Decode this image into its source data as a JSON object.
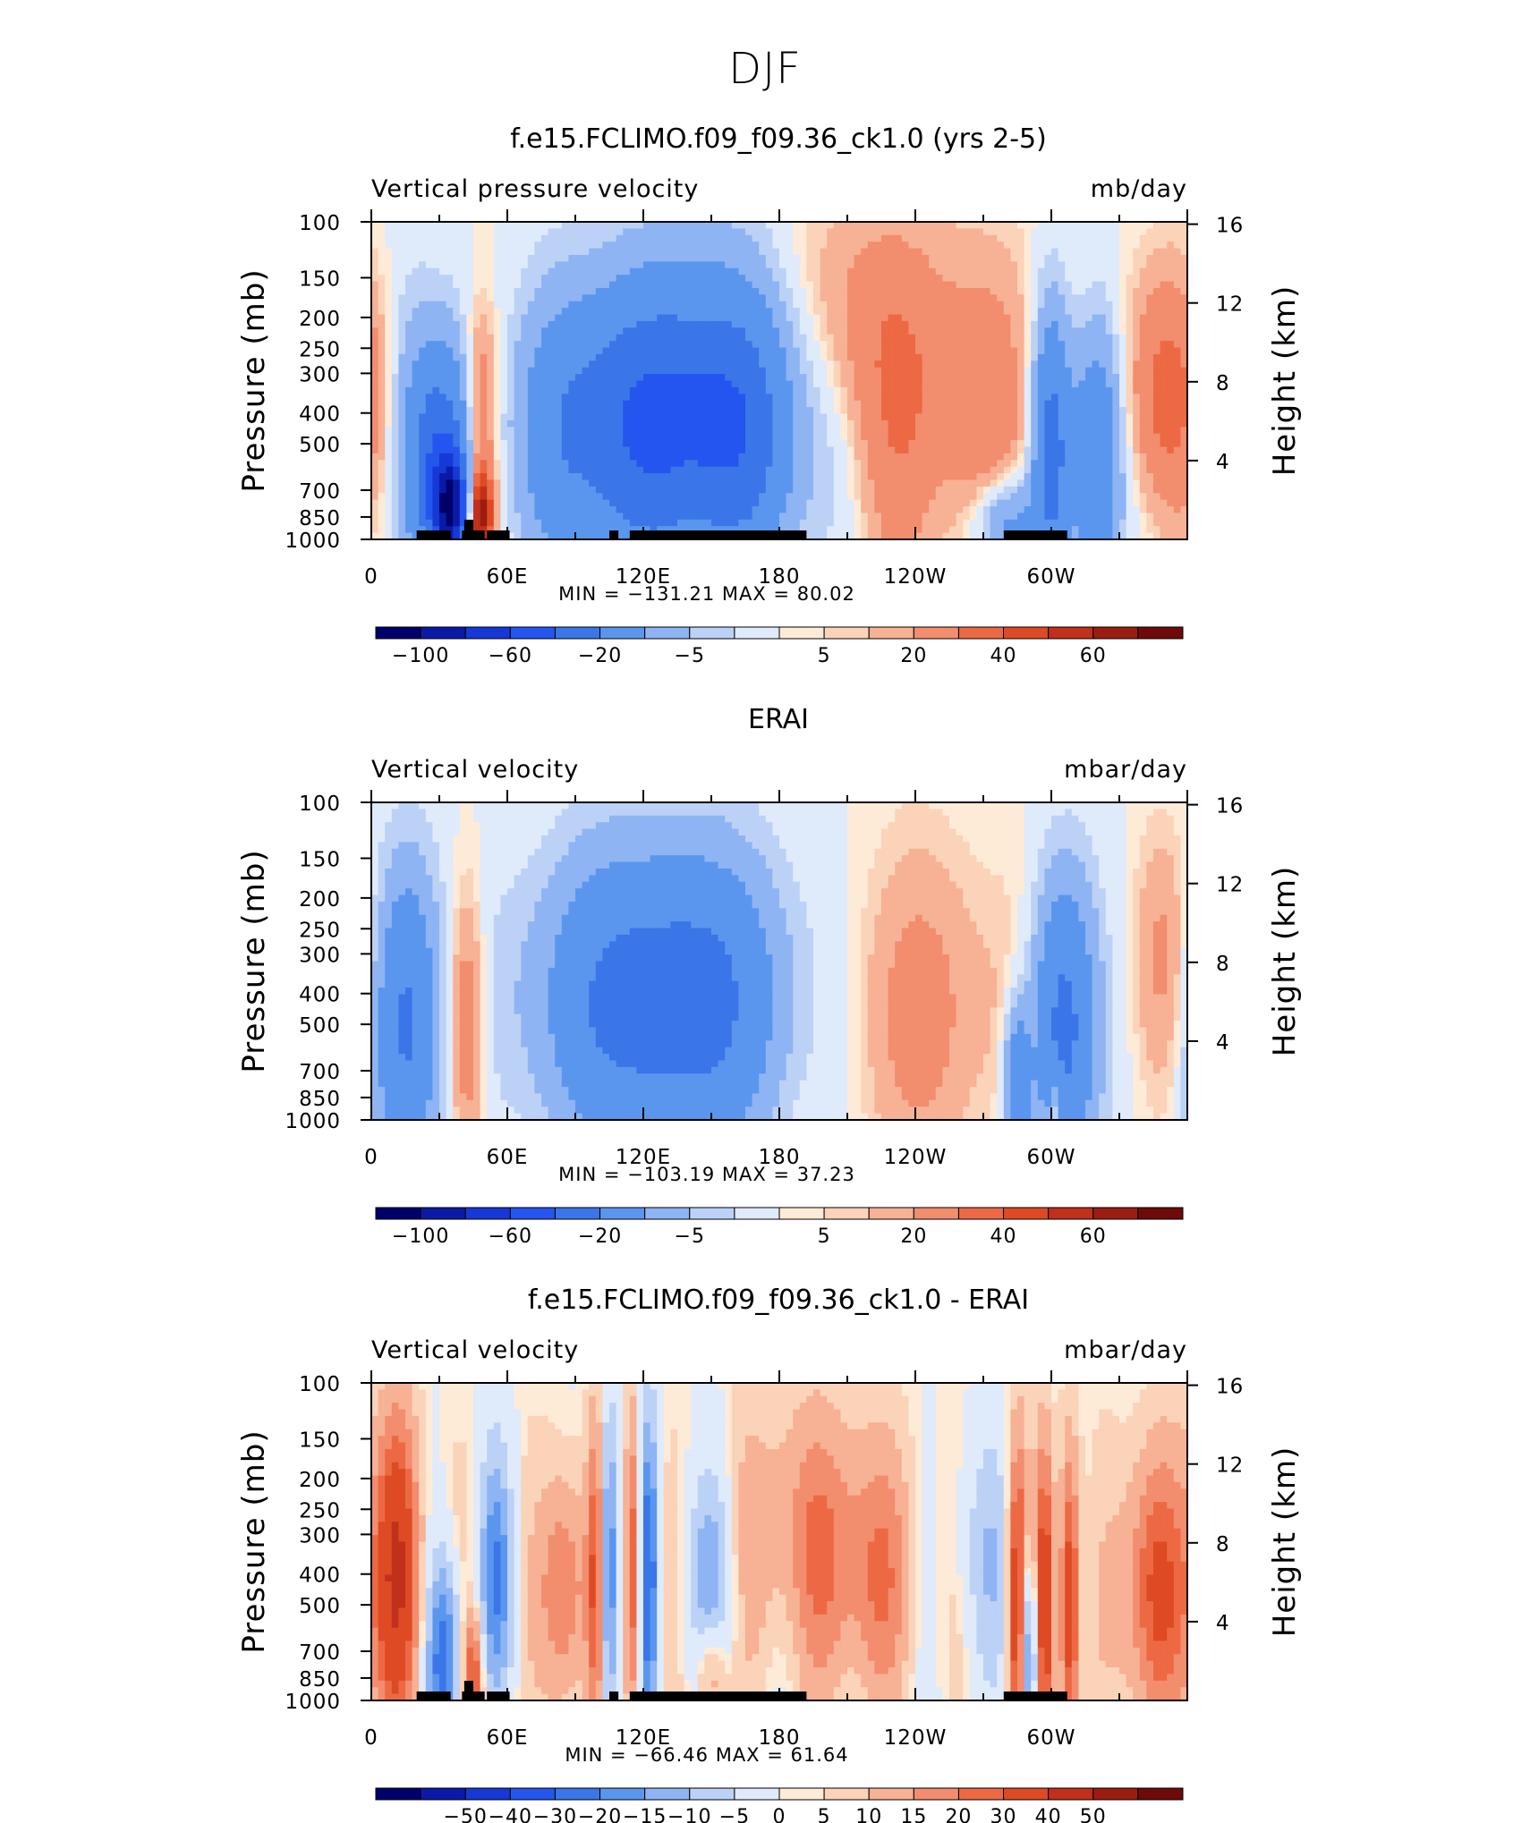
{
  "figure_title": "DJF",
  "chart_data": [
    {
      "type": "heatmap",
      "title": "f.e15.FCLIMO.f09_f09.36_ck1.0 (yrs 2-5)",
      "variable_label": "Vertical pressure velocity",
      "units_label": "mb/day",
      "ylabel": "Pressure (mb)",
      "ylabel_right": "Height (km)",
      "x_ticks": [
        "0",
        "60E",
        "120E",
        "180",
        "120W",
        "60W"
      ],
      "y_ticks": [
        "100",
        "150",
        "200",
        "250",
        "300",
        "400",
        "500",
        "700",
        "850",
        "1000"
      ],
      "y_ticks_right": [
        "16",
        "12",
        "8",
        "4"
      ],
      "stats": {
        "min_label": "MIN",
        "min": "−131.21",
        "max_label": "MAX",
        "max": "80.02"
      },
      "colorbar_levels": [
        "−100",
        "−60",
        "−20",
        "−5",
        "5",
        "20",
        "40",
        "60"
      ],
      "x_range_deg": [
        0,
        360
      ],
      "ylim": [
        1000,
        100
      ],
      "pattern": "model",
      "terrain": [
        [
          20,
          35
        ],
        [
          40,
          50
        ],
        [
          51,
          61
        ],
        [
          41,
          45
        ],
        [
          105,
          109
        ],
        [
          114,
          192
        ],
        [
          279,
          307
        ]
      ]
    },
    {
      "type": "heatmap",
      "title": "ERAI",
      "variable_label": "Vertical velocity",
      "units_label": "mbar/day",
      "ylabel": "Pressure (mb)",
      "ylabel_right": "Height (km)",
      "x_ticks": [
        "0",
        "60E",
        "120E",
        "180",
        "120W",
        "60W"
      ],
      "y_ticks": [
        "100",
        "150",
        "200",
        "250",
        "300",
        "400",
        "500",
        "700",
        "850",
        "1000"
      ],
      "y_ticks_right": [
        "16",
        "12",
        "8",
        "4"
      ],
      "stats": {
        "min_label": "MIN",
        "min": "−103.19",
        "max_label": "MAX",
        "max": "37.23"
      },
      "colorbar_levels": [
        "−100",
        "−60",
        "−20",
        "−5",
        "5",
        "20",
        "40",
        "60"
      ],
      "x_range_deg": [
        0,
        360
      ],
      "ylim": [
        1000,
        100
      ],
      "pattern": "obs",
      "terrain": []
    },
    {
      "type": "heatmap",
      "title": "f.e15.FCLIMO.f09_f09.36_ck1.0 - ERAI",
      "variable_label": "Vertical velocity",
      "units_label": "mbar/day",
      "ylabel": "Pressure (mb)",
      "ylabel_right": "Height (km)",
      "x_ticks": [
        "0",
        "60E",
        "120E",
        "180",
        "120W",
        "60W"
      ],
      "y_ticks": [
        "100",
        "150",
        "200",
        "250",
        "300",
        "400",
        "500",
        "700",
        "850",
        "1000"
      ],
      "y_ticks_right": [
        "16",
        "12",
        "8",
        "4"
      ],
      "stats": {
        "min_label": "MIN",
        "min": "−66.46",
        "max_label": "MAX",
        "max": "61.64"
      },
      "colorbar_levels": [
        "−50",
        "−40",
        "−30",
        "−20",
        "−15",
        "−10",
        "−5",
        "0",
        "5",
        "10",
        "15",
        "20",
        "30",
        "40",
        "50"
      ],
      "x_range_deg": [
        0,
        360
      ],
      "ylim": [
        1000,
        100
      ],
      "pattern": "diff",
      "terrain": [
        [
          20,
          35
        ],
        [
          40,
          50
        ],
        [
          51,
          61
        ],
        [
          41,
          45
        ],
        [
          105,
          109
        ],
        [
          114,
          192
        ],
        [
          279,
          307
        ]
      ]
    }
  ],
  "colormap": [
    "#00006b",
    "#0b1aa6",
    "#1538d6",
    "#2455ee",
    "#3a76e8",
    "#5b96ee",
    "#8eb4f3",
    "#bcd1f6",
    "#dfeafb",
    "#fdebd8",
    "#fbd3b8",
    "#f7b195",
    "#f28d6e",
    "#ec6944",
    "#de4a24",
    "#c1301b",
    "#9b1d12",
    "#6e0a0a"
  ]
}
